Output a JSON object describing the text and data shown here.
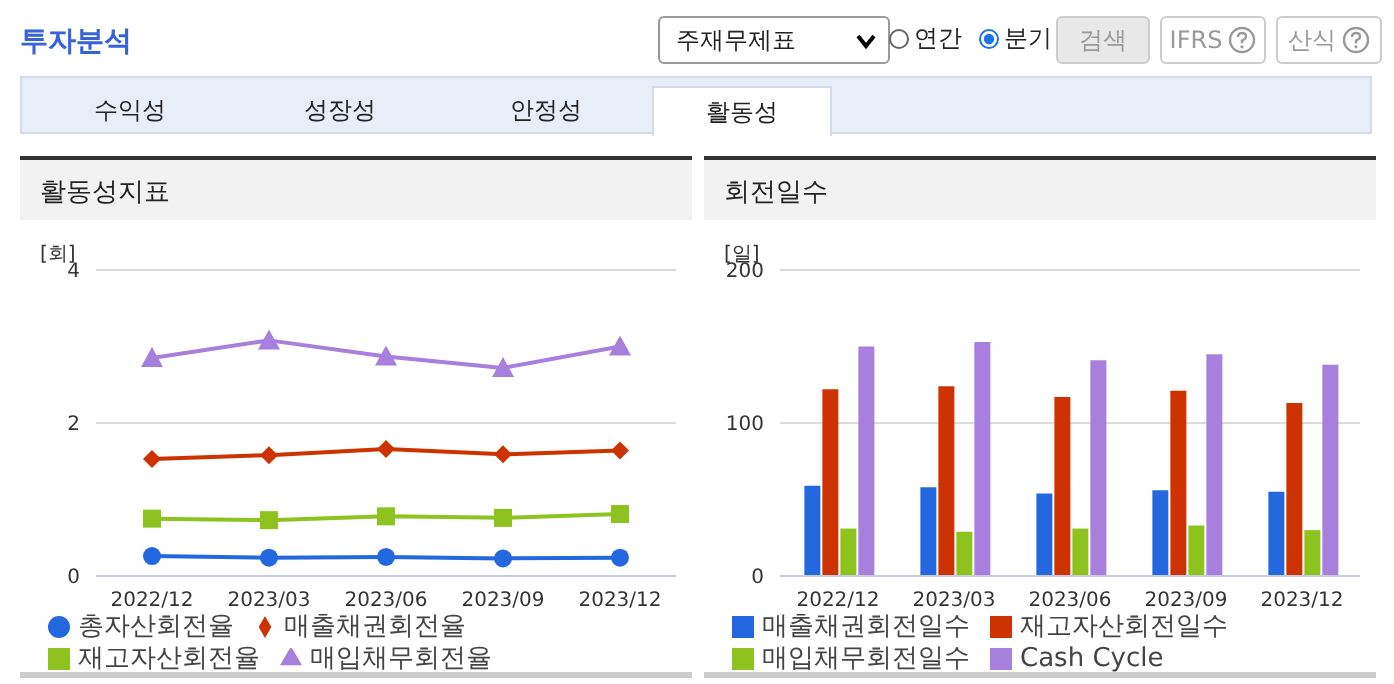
{
  "chart_data": [
    {
      "type": "other",
      "title": "투자분석",
      "annotations": [
        "주재무제표",
        "연간",
        "분기",
        "검색",
        "IFRS",
        "산식",
        "수익성",
        "성장성",
        "안정성",
        "활동성"
      ]
    },
    {
      "type": "line",
      "title": "활동성지표",
      "ylabel": "[회]",
      "categories": [
        "2022/12",
        "2023/03",
        "2023/06",
        "2023/09",
        "2023/12"
      ],
      "series": [
        {
          "name": "총자산회전율",
          "color": "#2368df",
          "marker": "circle",
          "values": [
            0.26,
            0.24,
            0.25,
            0.23,
            0.24
          ]
        },
        {
          "name": "매출채권회전율",
          "color": "#cc3300",
          "marker": "diamond",
          "values": [
            1.53,
            1.58,
            1.66,
            1.59,
            1.64
          ]
        },
        {
          "name": "재고자산회전율",
          "color": "#8dc21f",
          "marker": "square",
          "values": [
            0.75,
            0.73,
            0.78,
            0.76,
            0.81
          ]
        },
        {
          "name": "매입채무회전율",
          "color": "#a77fdc",
          "marker": "triangle",
          "values": [
            2.85,
            3.08,
            2.87,
            2.72,
            3.0
          ]
        }
      ],
      "ylim": [
        0,
        4
      ],
      "yticks": [
        0,
        2,
        4
      ],
      "grid": "y",
      "legend": "bottom"
    },
    {
      "type": "bar",
      "title": "회전일수",
      "ylabel": "[일]",
      "categories": [
        "2022/12",
        "2023/03",
        "2023/06",
        "2023/09",
        "2023/12"
      ],
      "series": [
        {
          "name": "매출채권회전일수",
          "color": "#2368df",
          "values": [
            59,
            58,
            54,
            56,
            55
          ]
        },
        {
          "name": "재고자산회전일수",
          "color": "#cc3300",
          "values": [
            122,
            124,
            117,
            121,
            113
          ]
        },
        {
          "name": "매입채무회전일수",
          "color": "#8dc21f",
          "values": [
            31,
            29,
            31,
            33,
            30
          ]
        },
        {
          "name": "Cash Cycle",
          "color": "#a77fdc",
          "values": [
            150,
            153,
            141,
            145,
            138
          ]
        }
      ],
      "ylim": [
        0,
        200
      ],
      "yticks": [
        0,
        100,
        200
      ],
      "grid": "y",
      "legend": "bottom"
    }
  ]
}
